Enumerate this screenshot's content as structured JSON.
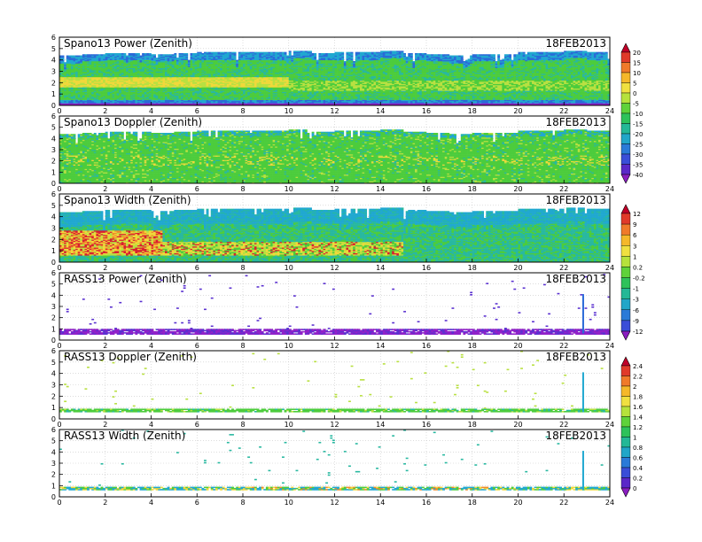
{
  "chart_data": [
    {
      "type": "heatmap",
      "title": "Spano13 Power (Zenith)",
      "date_label": "18FEB2013",
      "x_ticks": [
        "0",
        "2",
        "4",
        "6",
        "8",
        "10",
        "12",
        "14",
        "16",
        "18",
        "20",
        "22",
        "24"
      ],
      "y_ticks": [
        "0",
        "1",
        "2",
        "3",
        "4",
        "5",
        "6"
      ],
      "xlim": [
        0,
        24
      ],
      "ylim": [
        0,
        6
      ],
      "colorbar": "power",
      "pattern": "power",
      "data_top_height": [
        4.3,
        4.4,
        4.5,
        4.5,
        4.4,
        4.5,
        4.6,
        4.6,
        4.6,
        4.6,
        4.7,
        4.5,
        4.6,
        4.6,
        4.7,
        4.5,
        4.4,
        4.3,
        4.4,
        4.4,
        4.6,
        4.6,
        4.7,
        4.6,
        4.7
      ]
    },
    {
      "type": "heatmap",
      "title": "Spano13 Doppler (Zenith)",
      "date_label": "18FEB2013",
      "x_ticks": [
        "0",
        "2",
        "4",
        "6",
        "8",
        "10",
        "12",
        "14",
        "16",
        "18",
        "20",
        "22",
        "24"
      ],
      "y_ticks": [
        "0",
        "1",
        "2",
        "3",
        "4",
        "5",
        "6"
      ],
      "xlim": [
        0,
        24
      ],
      "ylim": [
        0,
        6
      ],
      "colorbar": "power",
      "pattern": "doppler",
      "data_top_height": [
        4.3,
        4.4,
        4.5,
        4.5,
        4.4,
        4.5,
        4.6,
        4.6,
        4.6,
        4.6,
        4.7,
        4.5,
        4.6,
        4.6,
        4.7,
        4.5,
        4.4,
        4.3,
        4.4,
        4.4,
        4.6,
        4.6,
        4.7,
        4.6,
        4.7
      ]
    },
    {
      "type": "heatmap",
      "title": "Spano13 Width (Zenith)",
      "date_label": "18FEB2013",
      "x_ticks": [
        "0",
        "2",
        "4",
        "6",
        "8",
        "10",
        "12",
        "14",
        "16",
        "18",
        "20",
        "22",
        "24"
      ],
      "y_ticks": [
        "0",
        "1",
        "2",
        "3",
        "4",
        "5",
        "6"
      ],
      "xlim": [
        0,
        24
      ],
      "ylim": [
        0,
        6
      ],
      "colorbar": "width",
      "pattern": "width",
      "data_top_height": [
        4.3,
        4.4,
        4.5,
        4.5,
        4.4,
        4.5,
        4.6,
        4.6,
        4.6,
        4.6,
        4.7,
        4.5,
        4.6,
        4.6,
        4.7,
        4.5,
        4.4,
        4.3,
        4.4,
        4.4,
        4.6,
        4.6,
        4.7,
        4.6,
        4.7
      ]
    },
    {
      "type": "heatmap",
      "title": "RASS13 Power (Zenith)",
      "date_label": "18FEB2013",
      "x_ticks": [
        "0",
        "2",
        "4",
        "6",
        "8",
        "10",
        "12",
        "14",
        "16",
        "18",
        "20",
        "22",
        "24"
      ],
      "y_ticks": [
        "0",
        "1",
        "2",
        "3",
        "4",
        "5",
        "6"
      ],
      "xlim": [
        0,
        24
      ],
      "ylim": [
        0,
        6
      ],
      "colorbar": "width",
      "pattern": "rass_power",
      "band_height": [
        0.5,
        0.9
      ],
      "spike": {
        "x": 22.8,
        "ylim": [
          0.6,
          4.1
        ]
      }
    },
    {
      "type": "heatmap",
      "title": "RASS13 Doppler (Zenith)",
      "date_label": "18FEB2013",
      "x_ticks": [
        "0",
        "2",
        "4",
        "6",
        "8",
        "10",
        "12",
        "14",
        "16",
        "18",
        "20",
        "22",
        "24"
      ],
      "y_ticks": [
        "0",
        "1",
        "2",
        "3",
        "4",
        "5",
        "6"
      ],
      "xlim": [
        0,
        24
      ],
      "ylim": [
        0,
        6
      ],
      "colorbar": "rass",
      "pattern": "rass_doppler",
      "band_height": [
        0.55,
        0.8
      ],
      "spike": {
        "x": 22.8,
        "ylim": [
          0.6,
          4.1
        ]
      }
    },
    {
      "type": "heatmap",
      "title": "RASS13 Width (Zenith)",
      "date_label": "18FEB2013",
      "x_ticks": [
        "0",
        "2",
        "4",
        "6",
        "8",
        "10",
        "12",
        "14",
        "16",
        "18",
        "20",
        "22",
        "24"
      ],
      "y_ticks": [
        "0",
        "1",
        "2",
        "3",
        "4",
        "5",
        "6"
      ],
      "xlim": [
        0,
        24
      ],
      "ylim": [
        0,
        6
      ],
      "colorbar": "rass",
      "pattern": "rass_width",
      "band_height": [
        0.55,
        0.85
      ],
      "spike": {
        "x": 22.8,
        "ylim": [
          0.6,
          4.1
        ]
      }
    }
  ],
  "colorbars": {
    "power": {
      "labels": [
        "20",
        "15",
        "10",
        "5",
        "0",
        "-5",
        "-10",
        "-15",
        "-20",
        "-25",
        "-30",
        "-35",
        "-40"
      ],
      "colors": [
        "#c00028",
        "#e03a2a",
        "#f07a2a",
        "#f5b82a",
        "#f0e040",
        "#b6e23c",
        "#5fd23a",
        "#2ec25a",
        "#24b896",
        "#21a6c8",
        "#2a7ad8",
        "#3a4ed8",
        "#5a28c8",
        "#8a1ec0"
      ]
    },
    "width": {
      "labels": [
        "12",
        "9",
        "6",
        "3",
        "1",
        "0.2",
        "-0.2",
        "-1",
        "-3",
        "-6",
        "-9",
        "-12"
      ],
      "colors": [
        "#c00028",
        "#e03a2a",
        "#f07a2a",
        "#f5b82a",
        "#f0e040",
        "#b6e23c",
        "#5fd23a",
        "#2ec25a",
        "#24b896",
        "#21a6c8",
        "#2a7ad8",
        "#3a4ed8",
        "#8a1ec0"
      ]
    },
    "rass": {
      "labels": [
        "2.4",
        "2.2",
        "2",
        "1.8",
        "1.6",
        "1.4",
        "1.2",
        "1",
        "0.8",
        "0.6",
        "0.4",
        "0.2",
        "0"
      ],
      "colors": [
        "#c00028",
        "#e03a2a",
        "#f07a2a",
        "#f5b82a",
        "#f0e040",
        "#b6e23c",
        "#5fd23a",
        "#2ec25a",
        "#24b896",
        "#21a6c8",
        "#2a7ad8",
        "#3a4ed8",
        "#5a28c8",
        "#8a1ec0"
      ]
    }
  }
}
